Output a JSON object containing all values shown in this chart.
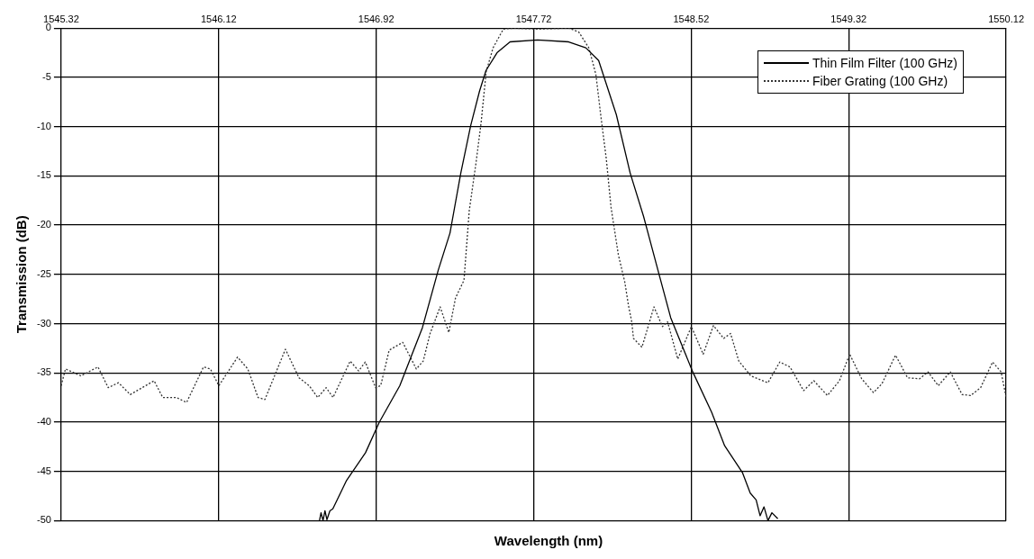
{
  "chart_data": {
    "type": "line",
    "xlabel": "Wavelength (nm)",
    "ylabel": "Transmission (dB)",
    "xlim": [
      1545.32,
      1550.12
    ],
    "xticks": [
      1545.32,
      1546.12,
      1546.92,
      1547.72,
      1548.52,
      1549.32,
      1550.12
    ],
    "ylim": [
      -50,
      0
    ],
    "yticks": [
      -50,
      -45,
      -40,
      -35,
      -30,
      -25,
      -20,
      -15,
      -10,
      -5,
      0
    ],
    "grid": true,
    "legend": "top right",
    "marker": "none",
    "series": [
      {
        "name": "Thin Film Filter (100 GHz)",
        "color": "#000000",
        "line_style": "solid",
        "x": [
          1546.632,
          1546.64,
          1546.65,
          1546.66,
          1546.67,
          1546.685,
          1546.7,
          1546.77,
          1546.866,
          1546.936,
          1547.04,
          1547.155,
          1547.235,
          1547.295,
          1547.35,
          1547.4,
          1547.445,
          1547.478,
          1547.534,
          1547.6,
          1547.74,
          1547.898,
          1547.985,
          1548.05,
          1548.14,
          1548.21,
          1548.278,
          1548.365,
          1548.416,
          1548.528,
          1548.624,
          1548.69,
          1548.78,
          1548.82,
          1548.85,
          1548.87,
          1548.89,
          1548.91,
          1548.93,
          1548.96
        ],
        "values": [
          -50,
          -49.2,
          -50,
          -49,
          -49.9,
          -49,
          -48.8,
          -45.9,
          -43.1,
          -40,
          -36.3,
          -30.4,
          -24.6,
          -20.8,
          -14.7,
          -9.9,
          -6.4,
          -4.3,
          -2.5,
          -1.4,
          -1.2,
          -1.4,
          -2,
          -3.3,
          -8.8,
          -14.7,
          -19.1,
          -25.6,
          -29.4,
          -34.9,
          -39,
          -42.4,
          -45.1,
          -47.2,
          -47.9,
          -49.5,
          -48.6,
          -50,
          -49.2,
          -49.8
        ]
      },
      {
        "name": "Fiber Grating (100 GHz)",
        "color": "#333333",
        "line_style": "dotted",
        "x": [
          1545.32,
          1545.342,
          1545.42,
          1545.507,
          1545.559,
          1545.611,
          1545.671,
          1545.732,
          1545.792,
          1545.836,
          1545.905,
          1545.957,
          1546.043,
          1546.078,
          1546.121,
          1546.216,
          1546.268,
          1546.32,
          1546.355,
          1546.459,
          1546.528,
          1546.58,
          1546.623,
          1546.666,
          1546.701,
          1546.788,
          1546.831,
          1546.865,
          1546.917,
          1546.943,
          1546.986,
          1547.055,
          1547.124,
          1547.159,
          1547.194,
          1547.245,
          1547.289,
          1547.323,
          1547.366,
          1547.393,
          1547.427,
          1547.453,
          1547.479,
          1547.514,
          1547.566,
          1547.617,
          1547.739,
          1547.898,
          1547.949,
          1548,
          1548.036,
          1548.061,
          1548.089,
          1548.113,
          1548.15,
          1548.183,
          1548.201,
          1548.218,
          1548.227,
          1548.27,
          1548.331,
          1548.374,
          1548.4,
          1548.452,
          1548.521,
          1548.581,
          1548.633,
          1548.685,
          1548.72,
          1548.762,
          1548.823,
          1548.91,
          1548.97,
          1549.022,
          1549.091,
          1549.143,
          1549.212,
          1549.273,
          1549.325,
          1549.386,
          1549.446,
          1549.489,
          1549.558,
          1549.619,
          1549.68,
          1549.723,
          1549.775,
          1549.836,
          1549.896,
          1549.939,
          1549.99,
          1550.051,
          1550.094,
          1550.12
        ],
        "values": [
          -36.3,
          -34.6,
          -35.3,
          -34.4,
          -36.5,
          -36,
          -37.2,
          -36.5,
          -35.8,
          -37.5,
          -37.5,
          -38,
          -34.4,
          -34.6,
          -36.3,
          -33.4,
          -34.6,
          -37.5,
          -37.7,
          -32.6,
          -35.5,
          -36.3,
          -37.5,
          -36.5,
          -37.5,
          -33.8,
          -34.8,
          -33.9,
          -36.5,
          -36.3,
          -32.7,
          -31.9,
          -34.6,
          -33.8,
          -31,
          -28.3,
          -30.9,
          -27.4,
          -25.6,
          -18.5,
          -13.7,
          -9.6,
          -4.4,
          -2,
          -0.1,
          0,
          -0.1,
          0,
          -0.4,
          -2,
          -4.7,
          -8.9,
          -13.3,
          -18.2,
          -23,
          -25.8,
          -28.1,
          -29.8,
          -31.5,
          -32.4,
          -28.3,
          -30.3,
          -29.8,
          -33.6,
          -30.3,
          -33.1,
          -30.2,
          -31.5,
          -31,
          -33.8,
          -35.3,
          -36,
          -33.9,
          -34.4,
          -36.8,
          -35.8,
          -37.3,
          -35.8,
          -33.1,
          -35.6,
          -37,
          -36.1,
          -33.2,
          -35.5,
          -35.6,
          -34.9,
          -36.3,
          -34.9,
          -37.2,
          -37.3,
          -36.5,
          -33.9,
          -34.9,
          -37.5
        ]
      }
    ]
  }
}
